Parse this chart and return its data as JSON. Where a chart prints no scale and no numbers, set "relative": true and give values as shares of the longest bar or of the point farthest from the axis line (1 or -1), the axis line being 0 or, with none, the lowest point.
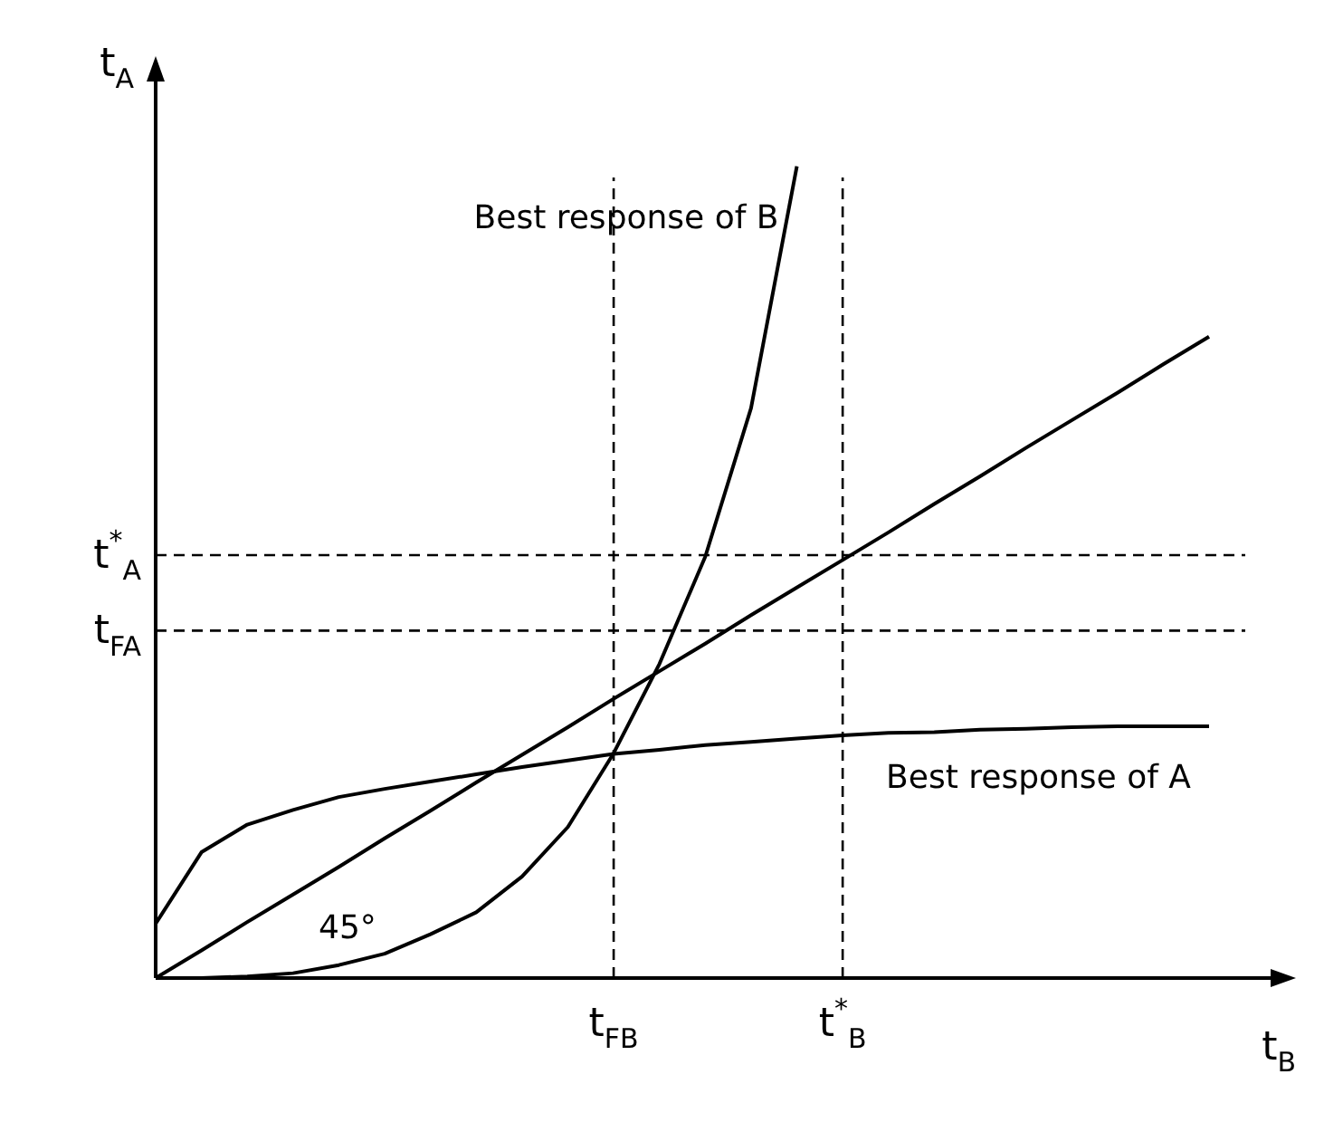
{
  "chart_data": {
    "type": "line",
    "relative": true,
    "tick_labels": "x",
    "xlabel": "t$_{B}$",
    "ylabel": "t$_{A}$",
    "annotations": [
      "45°"
    ],
    "categories": [
      null,
      null,
      null,
      null,
      null,
      null,
      null,
      null,
      null,
      null,
      "t$_{FB}$",
      null,
      null,
      null,
      null,
      "t$^{*}$$_{B}$",
      null,
      null,
      null,
      null,
      null,
      null,
      null,
      null
    ],
    "series": [
      {
        "color": "#000000",
        "values": [
          0,
          0.034,
          0.069,
          0.103,
          0.137,
          0.172,
          0.206,
          0.241,
          0.275,
          0.309,
          0.344,
          0.378,
          0.412,
          0.447,
          0.481,
          0.515,
          0.549,
          0.584,
          0.618,
          0.653,
          0.687,
          0.721,
          0.756,
          0.79
        ]
      },
      {
        "name": "Best response of B",
        "color": "#000000",
        "values": [
          0,
          0,
          0.002,
          0.006,
          0.016,
          0.03,
          0.054,
          0.081,
          0.125,
          0.186,
          0.277,
          0.387,
          0.519,
          0.702,
          1,
          null,
          null,
          null,
          null,
          null,
          null,
          null,
          null,
          null
        ]
      },
      {
        "name": "Best response of A",
        "color": "#000000",
        "values": [
          0.067,
          0.155,
          0.189,
          0.207,
          0.223,
          0.233,
          0.242,
          0.251,
          0.26,
          0.268,
          0.276,
          0.281,
          0.287,
          0.291,
          0.295,
          0.299,
          0.302,
          0.303,
          0.306,
          0.307,
          0.309,
          0.31,
          0.31,
          0.31
        ]
      }
    ],
    "ref_lines": [
      {
        "axis": "y",
        "value": 0.521,
        "label": "t$^{*}$$_{A}$",
        "line_style": "dashed",
        "color": "#000000"
      },
      {
        "axis": "y",
        "value": 0.428,
        "label": "t$_{FA}$",
        "line_style": "dashed",
        "color": "#000000"
      },
      {
        "axis": "x",
        "value": "t$_{FB}$",
        "line_style": "dashed",
        "color": "#000000"
      },
      {
        "axis": "x",
        "value": "t$^{*}$$_{B}$",
        "line_style": "dashed",
        "color": "#000000"
      }
    ]
  }
}
